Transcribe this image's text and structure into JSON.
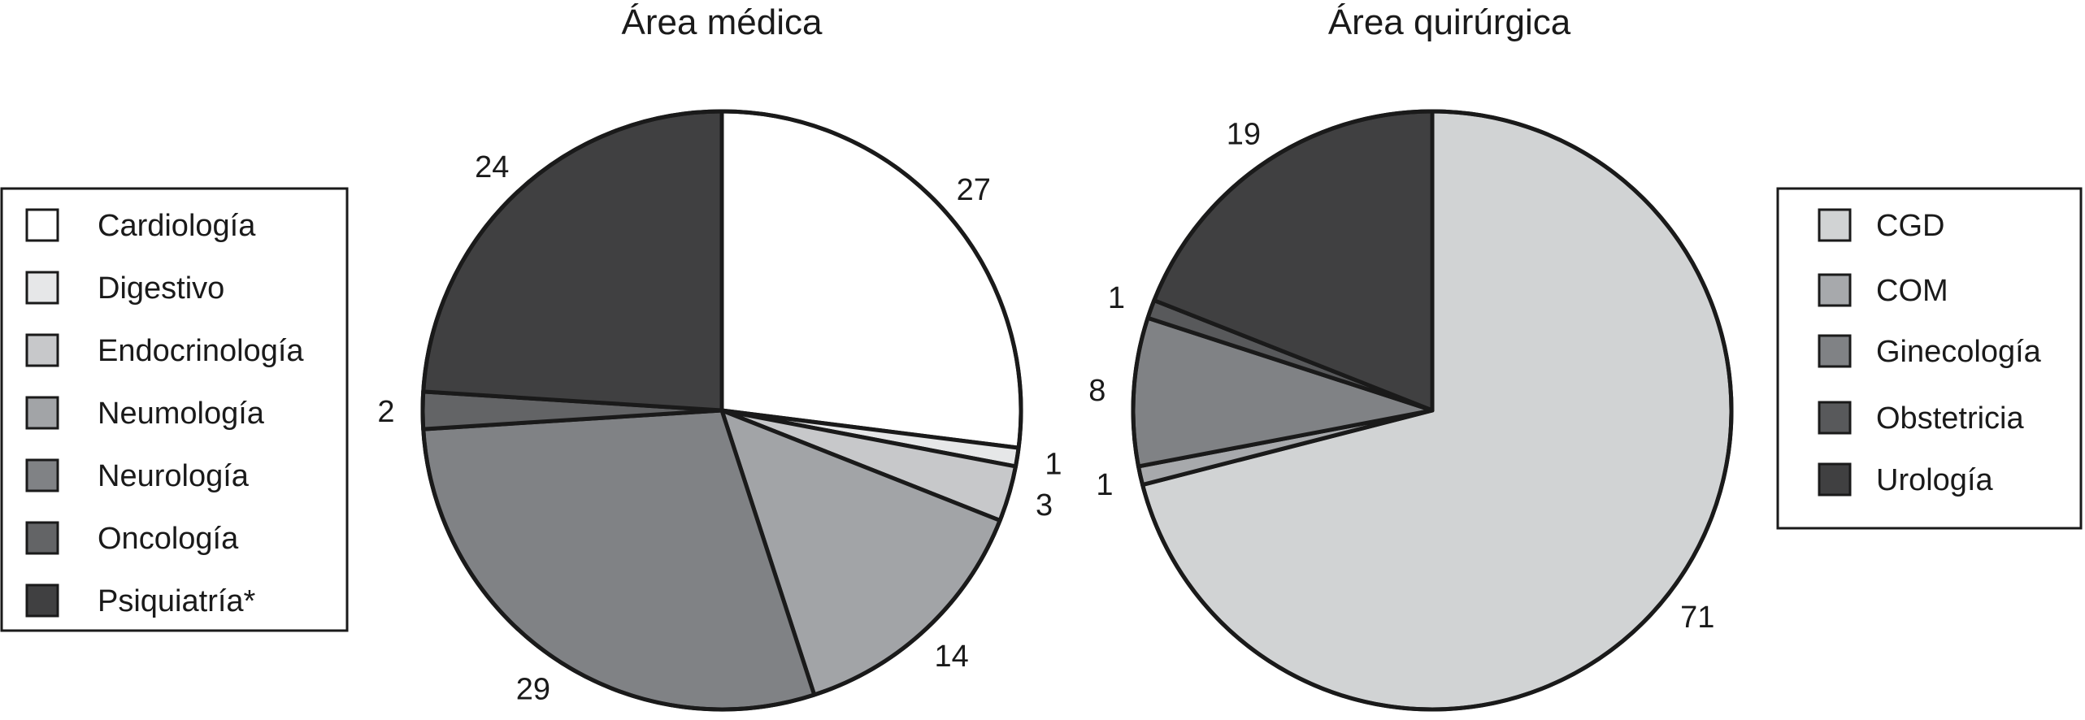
{
  "chart_data": [
    {
      "type": "pie",
      "title": "Área médica",
      "legend_position": "left",
      "slices": [
        {
          "label": "Cardiología",
          "value": 27,
          "color": "#ffffff"
        },
        {
          "label": "Digestivo",
          "value": 1,
          "color": "#e6e7e8"
        },
        {
          "label": "Endocrinología",
          "value": 3,
          "color": "#c7c8ca"
        },
        {
          "label": "Neumología",
          "value": 14,
          "color": "#a2a4a7"
        },
        {
          "label": "Neurología",
          "value": 29,
          "color": "#808285"
        },
        {
          "label": "Oncología",
          "value": 2,
          "color": "#636466"
        },
        {
          "label": "Psiquiatría*",
          "value": 24,
          "color": "#404041"
        }
      ]
    },
    {
      "type": "pie",
      "title": "Área quirúrgica",
      "legend_position": "right",
      "slices": [
        {
          "label": "CGD",
          "value": 71,
          "color": "#d1d3d4"
        },
        {
          "label": "COM",
          "value": 1,
          "color": "#a7a9ac"
        },
        {
          "label": "Ginecología",
          "value": 8,
          "color": "#808285"
        },
        {
          "label": "Obstetricia",
          "value": 1,
          "color": "#58595b"
        },
        {
          "label": "Urología",
          "value": 19,
          "color": "#404041"
        }
      ]
    }
  ]
}
